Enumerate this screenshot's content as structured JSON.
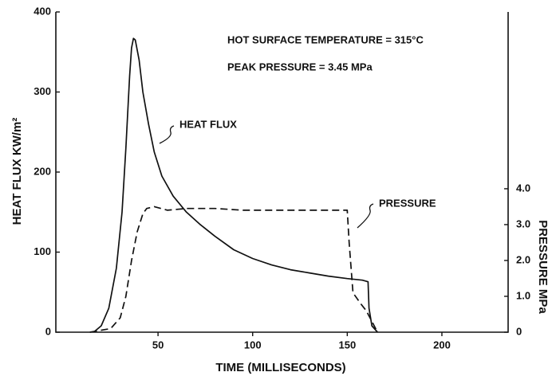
{
  "chart_data": {
    "type": "line",
    "annotations": [
      "HOT SURFACE TEMPERATURE = 315°C",
      "PEAK PRESSURE = 3.45 MPa"
    ],
    "xlabel": "TIME (MILLISECONDS)",
    "ylabel": "HEAT FLUX   KW/m²",
    "y2label": "PRESSURE MPa",
    "xlim": [
      -4,
      235
    ],
    "xticks": [
      50,
      100,
      150,
      200
    ],
    "ylim": [
      0,
      400
    ],
    "yticks": [
      0,
      100,
      200,
      300,
      400
    ],
    "y2lim": [
      0,
      8.93
    ],
    "y2ticks": [
      0,
      {
        "value": 1,
        "label": "1.0"
      },
      {
        "value": 2,
        "label": "2.0"
      },
      {
        "value": 3,
        "label": "3.0"
      },
      {
        "value": 4,
        "label": "4.0"
      }
    ],
    "series": [
      {
        "name": "HEAT FLUX",
        "color": "#111111",
        "dashed": false,
        "x": [
          16,
          20,
          24,
          28,
          31,
          33,
          35,
          36,
          37,
          38,
          40,
          42,
          45,
          48,
          52,
          58,
          65,
          72,
          80,
          90,
          100,
          110,
          120,
          130,
          140,
          150,
          158,
          161,
          161.5,
          163,
          166
        ],
        "values": [
          0,
          8,
          30,
          80,
          150,
          230,
          320,
          355,
          367,
          365,
          340,
          300,
          260,
          225,
          195,
          170,
          150,
          135,
          120,
          103,
          92,
          84,
          78,
          74,
          70,
          67,
          65,
          63,
          30,
          8,
          0
        ]
      },
      {
        "name": "PRESSURE",
        "color": "#111111",
        "dashed": true,
        "axis": "y2",
        "x": [
          14,
          25,
          30,
          33,
          36,
          39,
          42,
          44,
          48,
          55,
          65,
          80,
          95,
          110,
          130,
          150,
          151,
          153,
          157,
          160,
          163,
          166
        ],
        "values": [
          0,
          0.1,
          0.4,
          1.0,
          2.0,
          2.8,
          3.3,
          3.45,
          3.5,
          3.4,
          3.45,
          3.45,
          3.4,
          3.4,
          3.4,
          3.4,
          2.5,
          1.1,
          0.8,
          0.6,
          0.3,
          0
        ]
      }
    ]
  }
}
